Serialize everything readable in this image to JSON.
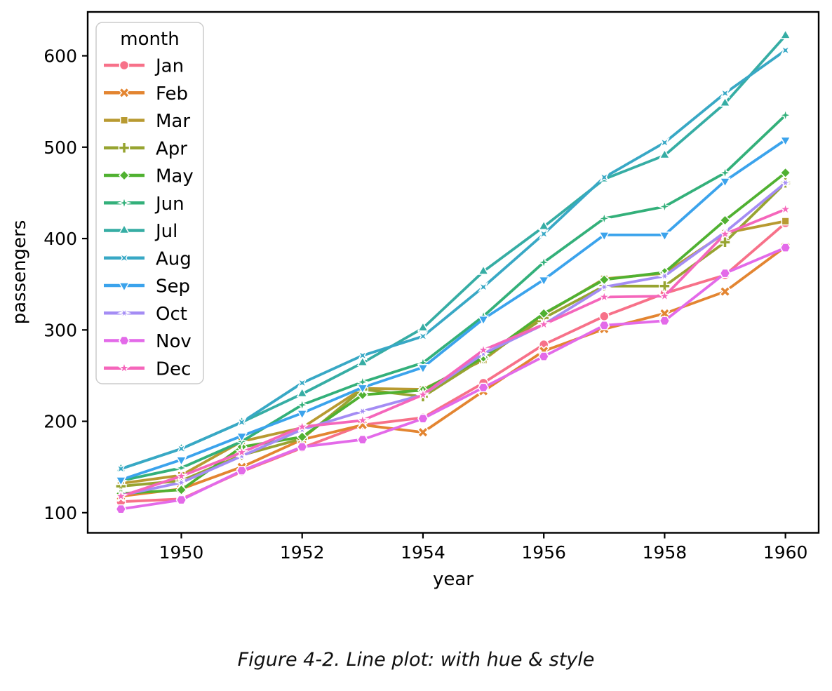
{
  "caption": "Figure 4-2. Line plot: with hue & style",
  "chart_data": {
    "type": "line",
    "title": "",
    "xlabel": "year",
    "ylabel": "passengers",
    "legend_title": "month",
    "legend_position": "upper-left",
    "grid": false,
    "x": [
      1949,
      1950,
      1951,
      1952,
      1953,
      1954,
      1955,
      1956,
      1957,
      1958,
      1959,
      1960
    ],
    "xlim": [
      1948.45,
      1960.55
    ],
    "ylim": [
      78,
      648
    ],
    "xticks": [
      1950,
      1952,
      1954,
      1956,
      1958,
      1960
    ],
    "yticks": [
      100,
      200,
      300,
      400,
      500,
      600
    ],
    "axis_color": "#000000",
    "text_color": "#000000",
    "legend_border_color": "#cccccc",
    "series": [
      {
        "name": "Jan",
        "color": "#f77189",
        "marker": "circle",
        "values": [
          112,
          115,
          145,
          171,
          196,
          204,
          242,
          284,
          315,
          340,
          360,
          417
        ]
      },
      {
        "name": "Feb",
        "color": "#e38531",
        "marker": "x",
        "values": [
          118,
          126,
          150,
          180,
          196,
          188,
          233,
          277,
          301,
          318,
          342,
          391
        ]
      },
      {
        "name": "Mar",
        "color": "#b89a31",
        "marker": "square",
        "values": [
          132,
          141,
          178,
          193,
          236,
          235,
          267,
          317,
          356,
          362,
          406,
          419
        ]
      },
      {
        "name": "Apr",
        "color": "#97a431",
        "marker": "plus",
        "values": [
          129,
          135,
          163,
          181,
          235,
          227,
          269,
          313,
          348,
          348,
          396,
          461
        ]
      },
      {
        "name": "May",
        "color": "#50b131",
        "marker": "diamond",
        "values": [
          121,
          125,
          172,
          183,
          229,
          234,
          270,
          318,
          355,
          363,
          420,
          472
        ]
      },
      {
        "name": "Jun",
        "color": "#33b07a",
        "marker": "star4",
        "values": [
          135,
          149,
          178,
          218,
          243,
          264,
          315,
          374,
          422,
          435,
          472,
          535
        ]
      },
      {
        "name": "Jul",
        "color": "#36ada4",
        "marker": "triangle-up",
        "values": [
          148,
          170,
          199,
          230,
          264,
          302,
          364,
          413,
          465,
          491,
          548,
          622
        ]
      },
      {
        "name": "Aug",
        "color": "#38a8c5",
        "marker": "star4-rot",
        "values": [
          148,
          170,
          199,
          242,
          272,
          293,
          347,
          405,
          467,
          505,
          559,
          606
        ]
      },
      {
        "name": "Sep",
        "color": "#3ba3ec",
        "marker": "triangle-down",
        "values": [
          136,
          158,
          184,
          209,
          237,
          259,
          312,
          355,
          404,
          404,
          463,
          508
        ]
      },
      {
        "name": "Oct",
        "color": "#a48cf4",
        "marker": "star6",
        "values": [
          119,
          133,
          162,
          191,
          211,
          229,
          274,
          306,
          347,
          359,
          407,
          461
        ]
      },
      {
        "name": "Nov",
        "color": "#e36ae9",
        "marker": "hexagon",
        "values": [
          104,
          114,
          146,
          172,
          180,
          203,
          237,
          271,
          305,
          310,
          362,
          390
        ]
      },
      {
        "name": "Dec",
        "color": "#f566bb",
        "marker": "star5",
        "values": [
          118,
          140,
          166,
          194,
          201,
          229,
          278,
          306,
          336,
          337,
          405,
          432
        ]
      }
    ]
  }
}
